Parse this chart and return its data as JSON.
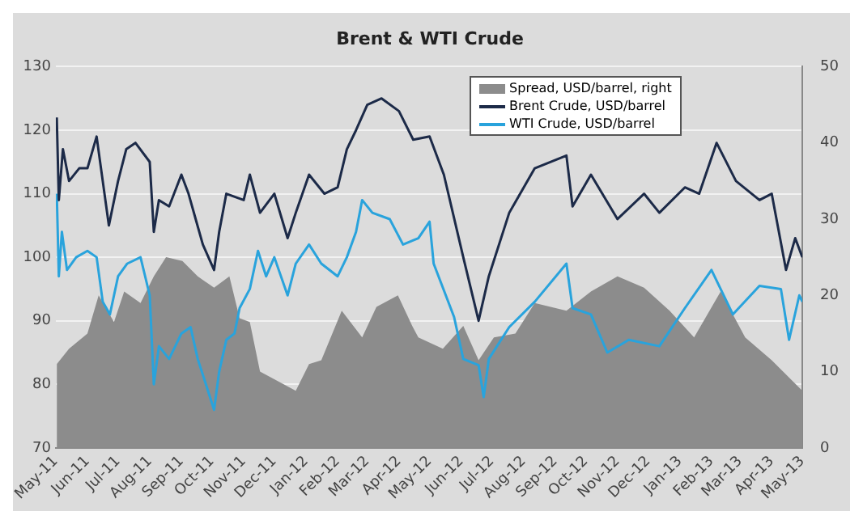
{
  "chart_data": {
    "type": "line",
    "title": "Brent & WTI Crude",
    "xlim": [
      "2011-05-01",
      "2013-05-01"
    ],
    "xticks": [
      {
        "value": "2011-05-01",
        "label": "May-11"
      },
      {
        "value": "2011-06-01",
        "label": "Jun-11"
      },
      {
        "value": "2011-07-01",
        "label": "Jul-11"
      },
      {
        "value": "2011-08-01",
        "label": "Aug-11"
      },
      {
        "value": "2011-09-01",
        "label": "Sep-11"
      },
      {
        "value": "2011-10-01",
        "label": "Oct-11"
      },
      {
        "value": "2011-11-01",
        "label": "Nov-11"
      },
      {
        "value": "2011-12-01",
        "label": "Dec-11"
      },
      {
        "value": "2012-01-01",
        "label": "Jan-12"
      },
      {
        "value": "2012-02-01",
        "label": "Feb-12"
      },
      {
        "value": "2012-03-01",
        "label": "Mar-12"
      },
      {
        "value": "2012-04-01",
        "label": "Apr-12"
      },
      {
        "value": "2012-05-01",
        "label": "May-12"
      },
      {
        "value": "2012-06-01",
        "label": "Jun-12"
      },
      {
        "value": "2012-07-01",
        "label": "Jul-12"
      },
      {
        "value": "2012-08-01",
        "label": "Aug-12"
      },
      {
        "value": "2012-09-01",
        "label": "Sep-12"
      },
      {
        "value": "2012-10-01",
        "label": "Oct-12"
      },
      {
        "value": "2012-11-01",
        "label": "Nov-12"
      },
      {
        "value": "2012-12-01",
        "label": "Dec-12"
      },
      {
        "value": "2013-01-01",
        "label": "Jan-13"
      },
      {
        "value": "2013-02-01",
        "label": "Feb-13"
      },
      {
        "value": "2013-03-01",
        "label": "Mar-13"
      },
      {
        "value": "2013-04-01",
        "label": "Apr-13"
      },
      {
        "value": "2013-05-01",
        "label": "May-13"
      }
    ],
    "ylim": [
      70,
      130
    ],
    "yticks": [
      70,
      80,
      90,
      100,
      110,
      120,
      130
    ],
    "y2lim": [
      0,
      50
    ],
    "y2ticks": [
      0,
      10,
      20,
      30,
      40,
      50
    ],
    "grid": "y",
    "legend": "top right",
    "marker": "none",
    "line_style": "solid",
    "series": [
      {
        "name": "Spread, USD/barrel, right",
        "type": "area",
        "axis": "y2",
        "color": "#8c8c8c",
        "x": [
          "2011-05-02",
          "2011-05-14",
          "2011-06-01",
          "2011-06-12",
          "2011-06-27",
          "2011-07-07",
          "2011-07-23",
          "2011-08-05",
          "2011-08-17",
          "2011-09-02",
          "2011-09-17",
          "2011-10-03",
          "2011-10-18",
          "2011-10-28",
          "2011-11-07",
          "2011-11-17",
          "2011-12-01",
          "2011-12-22",
          "2012-01-04",
          "2012-01-16",
          "2012-02-05",
          "2012-02-25",
          "2012-03-10",
          "2012-03-31",
          "2012-04-14",
          "2012-04-20",
          "2012-05-14",
          "2012-06-03",
          "2012-06-18",
          "2012-07-03",
          "2012-07-24",
          "2012-08-12",
          "2012-09-12",
          "2012-10-06",
          "2012-11-01",
          "2012-11-27",
          "2012-12-22",
          "2013-01-15",
          "2013-02-10",
          "2013-03-06",
          "2013-04-01",
          "2013-05-01"
        ],
        "values": [
          11,
          13,
          15,
          20,
          16.5,
          20.5,
          19,
          22.5,
          25,
          24.5,
          22.5,
          21,
          22.5,
          17,
          16.5,
          10,
          9,
          7.5,
          11,
          11.5,
          18,
          14.5,
          18.5,
          20,
          16,
          14.5,
          13,
          16,
          11.5,
          14.5,
          15,
          19,
          18,
          20.5,
          22.5,
          21,
          18,
          14.5,
          20.5,
          14.5,
          11.5,
          7.5
        ]
      },
      {
        "name": "Brent Crude, USD/barrel",
        "type": "line",
        "color": "#1c2a48",
        "x": [
          "2011-05-02",
          "2011-05-04",
          "2011-05-08",
          "2011-05-14",
          "2011-05-24",
          "2011-06-01",
          "2011-06-10",
          "2011-06-16",
          "2011-06-22",
          "2011-07-01",
          "2011-07-09",
          "2011-07-18",
          "2011-08-01",
          "2011-08-05",
          "2011-08-10",
          "2011-08-20",
          "2011-09-01",
          "2011-09-08",
          "2011-09-15",
          "2011-09-22",
          "2011-10-03",
          "2011-10-08",
          "2011-10-15",
          "2011-11-01",
          "2011-11-07",
          "2011-11-17",
          "2011-12-01",
          "2011-12-14",
          "2011-12-22",
          "2012-01-04",
          "2012-01-19",
          "2012-02-01",
          "2012-02-10",
          "2012-02-19",
          "2012-03-01",
          "2012-03-15",
          "2012-04-01",
          "2012-04-15",
          "2012-05-01",
          "2012-05-15",
          "2012-06-03",
          "2012-06-18",
          "2012-06-28",
          "2012-07-18",
          "2012-08-12",
          "2012-09-12",
          "2012-09-18",
          "2012-10-06",
          "2012-11-01",
          "2012-11-27",
          "2012-12-12",
          "2013-01-06",
          "2013-01-20",
          "2013-02-06",
          "2013-02-25",
          "2013-03-20",
          "2013-04-01",
          "2013-04-15",
          "2013-04-24",
          "2013-05-01"
        ],
        "values": [
          122,
          109,
          117,
          112,
          114,
          114,
          119,
          112,
          105,
          112,
          117,
          118,
          115,
          104,
          109,
          108,
          113,
          110,
          106,
          102,
          98,
          104,
          110,
          109,
          113,
          107,
          110,
          103,
          107,
          113,
          110,
          111,
          117,
          120,
          124,
          125,
          123,
          118.5,
          119,
          113,
          100,
          90,
          97,
          107,
          114,
          116,
          108,
          113,
          106,
          110,
          107,
          111,
          110,
          118,
          112,
          109,
          110,
          98,
          103,
          100
        ]
      },
      {
        "name": "WTI Crude, USD/barrel",
        "type": "line",
        "color": "#29a3dc",
        "x": [
          "2011-05-02",
          "2011-05-04",
          "2011-05-07",
          "2011-05-12",
          "2011-05-21",
          "2011-06-01",
          "2011-06-10",
          "2011-06-16",
          "2011-06-23",
          "2011-07-01",
          "2011-07-10",
          "2011-07-23",
          "2011-08-01",
          "2011-08-05",
          "2011-08-10",
          "2011-08-20",
          "2011-09-01",
          "2011-09-10",
          "2011-09-17",
          "2011-09-25",
          "2011-10-03",
          "2011-10-08",
          "2011-10-15",
          "2011-10-23",
          "2011-10-28",
          "2011-11-07",
          "2011-11-15",
          "2011-11-23",
          "2011-12-01",
          "2011-12-14",
          "2011-12-22",
          "2012-01-04",
          "2012-01-16",
          "2012-02-01",
          "2012-02-10",
          "2012-02-19",
          "2012-02-25",
          "2012-03-06",
          "2012-03-23",
          "2012-04-05",
          "2012-04-20",
          "2012-05-01",
          "2012-05-05",
          "2012-05-25",
          "2012-06-03",
          "2012-06-18",
          "2012-06-23",
          "2012-06-28",
          "2012-07-18",
          "2012-08-12",
          "2012-09-12",
          "2012-09-18",
          "2012-10-06",
          "2012-10-22",
          "2012-11-12",
          "2012-12-12",
          "2013-01-06",
          "2013-02-01",
          "2013-02-22",
          "2013-03-20",
          "2013-04-10",
          "2013-04-18",
          "2013-04-28",
          "2013-05-01"
        ],
        "values": [
          110,
          97,
          104,
          98,
          100,
          101,
          100,
          93,
          91,
          97,
          99,
          100,
          94,
          80,
          86,
          84,
          88,
          89,
          84,
          80,
          76,
          82,
          87,
          88,
          92,
          95,
          101,
          97,
          100,
          94,
          99,
          102,
          99,
          97,
          100,
          104,
          109,
          107,
          106,
          102,
          103,
          105.6,
          99,
          90.6,
          84,
          83,
          78,
          84,
          89,
          93,
          99,
          92,
          91,
          85,
          87,
          86,
          92,
          98,
          91,
          95.5,
          95,
          87,
          94,
          93
        ]
      }
    ]
  }
}
